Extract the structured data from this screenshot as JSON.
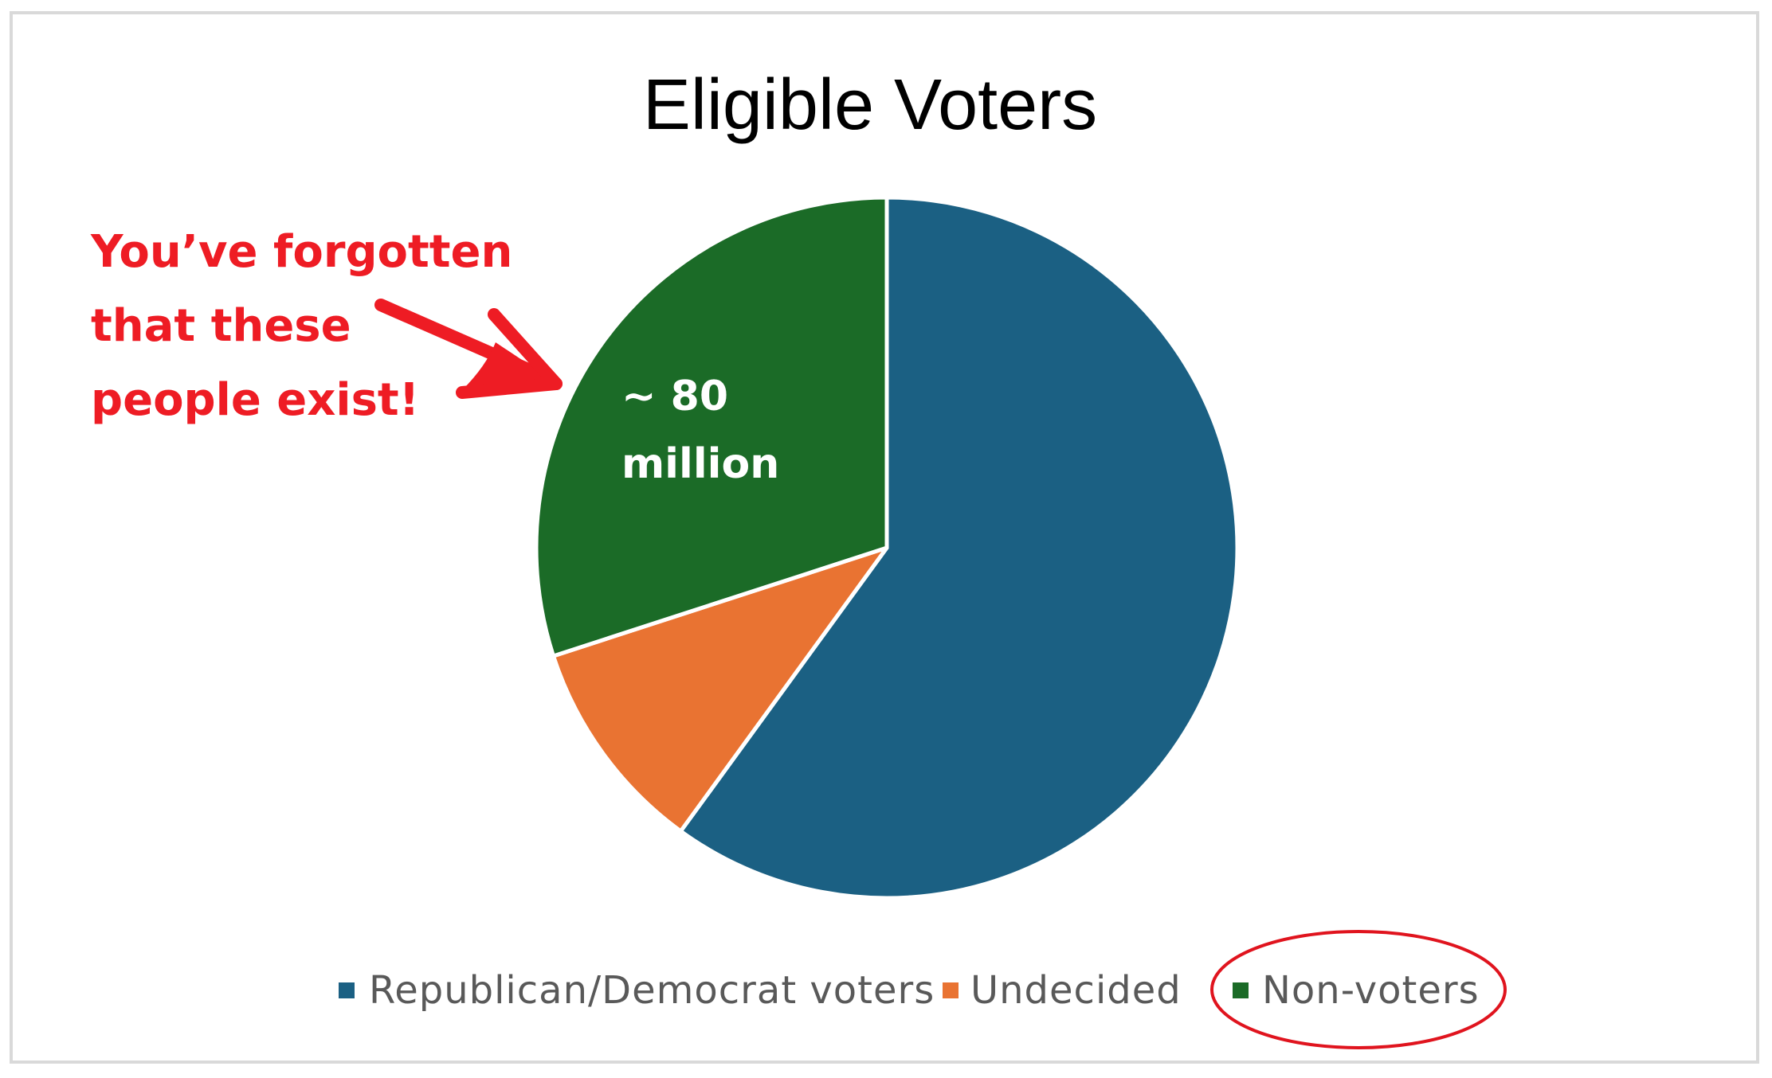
{
  "chart_data": {
    "type": "pie",
    "title": "Eligible Voters",
    "start_angle_deg": 0,
    "direction": "clockwise",
    "slices": [
      {
        "name": "Republican/Democrat voters",
        "value": 60,
        "color": "#1b6083",
        "label": ""
      },
      {
        "name": "Undecided",
        "value": 10,
        "color": "#e97332",
        "label": ""
      },
      {
        "name": "Non-voters",
        "value": 30,
        "color": "#1b6b27",
        "label_lines": [
          "~ 80",
          "million"
        ]
      }
    ],
    "legend": {
      "placement": "bottom",
      "entries": [
        "Republican/Democrat voters",
        "Undecided",
        "Non-voters"
      ],
      "highlighted_entry": "Non-voters",
      "highlight_color": "#e0141e"
    },
    "annotation": {
      "lines": [
        "You’ve forgotten",
        "that these",
        "people exist!"
      ],
      "color": "#ee1c24",
      "points_to": "Non-voters"
    }
  }
}
